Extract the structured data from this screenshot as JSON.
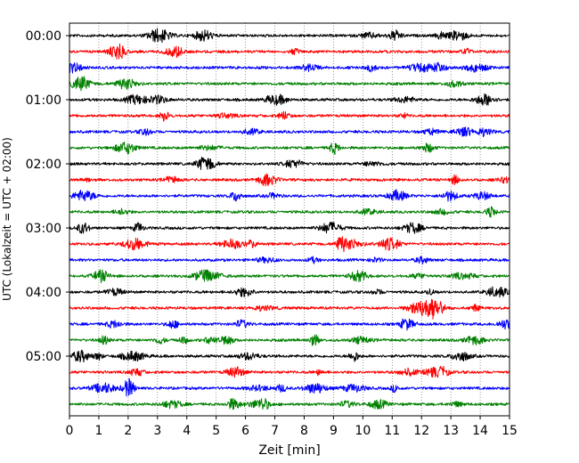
{
  "chart_data": {
    "type": "line",
    "title": "",
    "xlabel": "Zeit  [min]",
    "ylabel": "UTC (Lokalzeit = UTC + 02:00)",
    "xlim": [
      0,
      15
    ],
    "x_ticks": [
      "0",
      "1",
      "2",
      "3",
      "4",
      "5",
      "6",
      "7",
      "8",
      "9",
      "10",
      "11",
      "12",
      "13",
      "14",
      "15"
    ],
    "y_tick_labels": [
      "00:00",
      "01:00",
      "02:00",
      "03:00",
      "04:00",
      "05:00"
    ],
    "grid": "vertical dotted",
    "trace_colors": [
      "#000000",
      "#ff0000",
      "#0000ff",
      "#008000"
    ],
    "traces": [
      {
        "label": "00:00",
        "color": "#000000"
      },
      {
        "label": "00:15",
        "color": "#ff0000"
      },
      {
        "label": "00:30",
        "color": "#0000ff"
      },
      {
        "label": "00:45",
        "color": "#008000"
      },
      {
        "label": "01:00",
        "color": "#000000"
      },
      {
        "label": "01:15",
        "color": "#ff0000"
      },
      {
        "label": "01:30",
        "color": "#0000ff"
      },
      {
        "label": "01:45",
        "color": "#008000"
      },
      {
        "label": "02:00",
        "color": "#000000"
      },
      {
        "label": "02:15",
        "color": "#ff0000"
      },
      {
        "label": "02:30",
        "color": "#0000ff"
      },
      {
        "label": "02:45",
        "color": "#008000"
      },
      {
        "label": "03:00",
        "color": "#000000"
      },
      {
        "label": "03:15",
        "color": "#ff0000"
      },
      {
        "label": "03:30",
        "color": "#0000ff"
      },
      {
        "label": "03:45",
        "color": "#008000"
      },
      {
        "label": "04:00",
        "color": "#000000"
      },
      {
        "label": "04:15",
        "color": "#ff0000"
      },
      {
        "label": "04:30",
        "color": "#0000ff"
      },
      {
        "label": "04:45",
        "color": "#008000"
      },
      {
        "label": "05:00",
        "color": "#000000"
      },
      {
        "label": "05:15",
        "color": "#ff0000"
      },
      {
        "label": "05:30",
        "color": "#0000ff"
      },
      {
        "label": "05:45",
        "color": "#008000"
      }
    ]
  }
}
